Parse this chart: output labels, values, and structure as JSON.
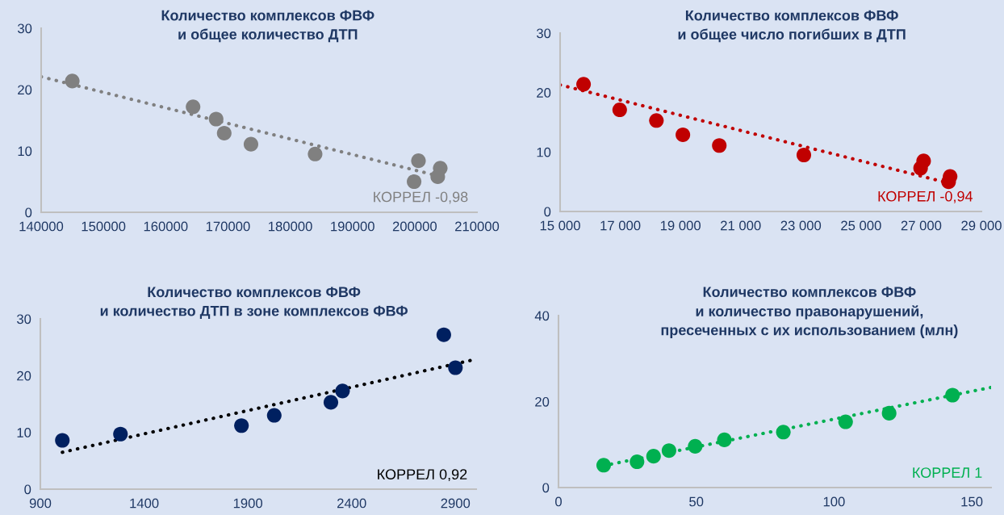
{
  "chart_data": [
    {
      "type": "scatter",
      "title": "Количество комплексов ФВФ\nи общее количество ДТП",
      "grid": false,
      "series": [
        {
          "marker": "circle",
          "color": "#808080",
          "x": [
            145000,
            164400,
            168100,
            169400,
            173700,
            184000,
            200600,
            199900,
            204100,
            203700
          ],
          "values": [
            21.4,
            17.2,
            15.2,
            12.9,
            11.1,
            9.5,
            8.4,
            5.0,
            7.2,
            5.8
          ]
        },
        {
          "type": "line",
          "marker": "none",
          "color": "#808080",
          "line_style": "dotted",
          "x": [
            140000,
            203100
          ],
          "values": [
            22.1,
            6.1
          ]
        }
      ],
      "xlim": [
        140000,
        210000
      ],
      "xticks": [
        140000,
        150000,
        160000,
        170000,
        180000,
        190000,
        200000,
        210000
      ],
      "ylim": [
        0,
        30
      ],
      "yticks": [
        0,
        10,
        20,
        30
      ],
      "annotations": [
        "КОРРЕЛ -0,98"
      ]
    },
    {
      "type": "scatter",
      "title": "Количество комплексов ФВФ\nи общее число погибших в ДТП",
      "grid": false,
      "series": [
        {
          "marker": "circle",
          "color": "#c00000",
          "x": [
            15780,
            16980,
            18200,
            19080,
            20290,
            23100,
            27080,
            26980,
            27960,
            27910
          ],
          "values": [
            21.4,
            17.1,
            15.3,
            12.9,
            11.1,
            9.5,
            8.5,
            7.3,
            5.9,
            5.0
          ]
        },
        {
          "type": "line",
          "marker": "none",
          "color": "#c00000",
          "line_style": "dotted",
          "x": [
            15000,
            27820
          ],
          "values": [
            21.3,
            4.9
          ]
        }
      ],
      "xlim": [
        15000,
        29000
      ],
      "xticks": [
        {
          "value": 15000,
          "label": "15 000"
        },
        {
          "value": 17000,
          "label": "17 000"
        },
        {
          "value": 19000,
          "label": "19 000"
        },
        {
          "value": 21000,
          "label": "21 000"
        },
        {
          "value": 23000,
          "label": "23 000"
        },
        {
          "value": 25000,
          "label": "25 000"
        },
        {
          "value": 27000,
          "label": "27 000"
        },
        {
          "value": 29000,
          "label": "29 000"
        }
      ],
      "ylim": [
        0,
        30
      ],
      "yticks": [
        0,
        10,
        20,
        30
      ],
      "annotations": [
        "КОРРЕЛ -0,94"
      ]
    },
    {
      "type": "scatter",
      "title": "Количество комплексов ФВФ\nи количество ДТП в зоне комплексов ФВФ",
      "grid": false,
      "series": [
        {
          "marker": "circle",
          "color": "#002060",
          "x": [
            1006,
            1286,
            1869,
            2027,
            2300,
            2356,
            2844,
            2900
          ],
          "values": [
            8.6,
            9.7,
            11.2,
            13.0,
            15.3,
            17.3,
            27.2,
            21.4
          ]
        },
        {
          "type": "line",
          "marker": "none",
          "color": "#000000",
          "line_style": "dotted",
          "x": [
            1006,
            3000
          ],
          "values": [
            6.5,
            22.9
          ]
        }
      ],
      "xlim": [
        900,
        3000
      ],
      "xticks": [
        900,
        1400,
        1900,
        2400,
        2900
      ],
      "ylim": [
        0,
        30
      ],
      "yticks": [
        0,
        10,
        20,
        30
      ],
      "annotations": [
        "КОРРЕЛ 0,92"
      ]
    },
    {
      "type": "scatter",
      "title": "Количество комплексов ФВФ\nи количество правонарушений,\nпресеченных с их использованием (млн)",
      "grid": false,
      "series": [
        {
          "marker": "circle",
          "color": "#00b050",
          "x": [
            16.4,
            28.5,
            34.5,
            40.1,
            49.6,
            60.2,
            81.6,
            104.2,
            120,
            143
          ],
          "values": [
            5.2,
            6.0,
            7.3,
            8.6,
            9.6,
            11.1,
            12.9,
            15.3,
            17.3,
            21.5
          ]
        },
        {
          "type": "line",
          "marker": "none",
          "color": "#00b050",
          "line_style": "dotted",
          "x": [
            16.4,
            157
          ],
          "values": [
            5.1,
            23.3
          ]
        }
      ],
      "xlim": [
        0,
        157
      ],
      "xticks": [
        0,
        50,
        100,
        150
      ],
      "ylim": [
        0,
        40
      ],
      "yticks": [
        0,
        20,
        40
      ],
      "annotations": [
        "КОРРЕЛ 1"
      ]
    }
  ]
}
